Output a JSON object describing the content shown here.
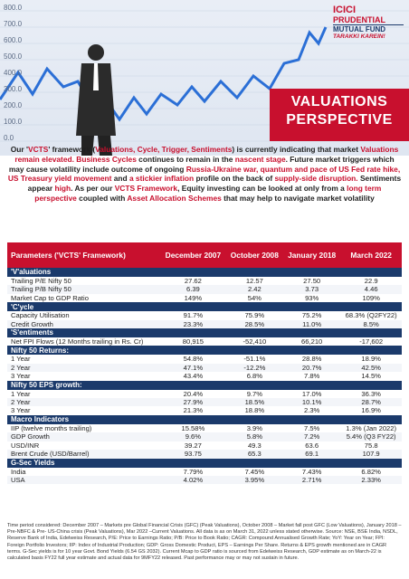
{
  "hero": {
    "y_ticks": [
      "800.0",
      "700.0",
      "600.0",
      "500.0",
      "400.0",
      "300.0",
      "200.0",
      "100.0",
      "0.0"
    ],
    "logo": {
      "brand": "ICICI",
      "sub": "PRUDENTIAL",
      "fund": "MUTUAL FUND",
      "tagline": "TARAKKI KAREIN!"
    },
    "title_line1": "VALUATIONS",
    "title_line2": "PERSPECTIVE"
  },
  "intro": {
    "p1_a": "Our '",
    "vcts": "VCTS",
    "p1_b": "' framework (",
    "vcts_expansion": "Valuations, Cycle, Trigger, Sentiments",
    "p1_c": ") is currently indicating that market ",
    "val_elev": "Valuations remain elevated.",
    "p1_d": " ",
    "bus_cyc": "Business Cycles",
    "p1_e": " continues to remain in the ",
    "nascent": "nascent stage",
    "p1_f": ". Future market triggers which may cause volatility include outcome of ongoing ",
    "ru_war": "Russia-Ukraine war, quantum and pace of US Fed rate hike, US Treasury yield movement",
    "p1_g": " and ",
    "infl": "a stickier inflation",
    "p1_h": " profile on the back of ",
    "supply": "supply-side disruption.",
    "p1_i": " Sentiments appear ",
    "high": "high",
    "p1_j": ". As per our ",
    "vcts_fw": "VCTS Framework",
    "p1_k": ", Equity investing can be looked at only from a ",
    "ltp": "long term perspective",
    "p1_l": " coupled with ",
    "aas": "Asset Allocation Schemes",
    "p1_m": " that may help to navigate market volatility"
  },
  "table": {
    "headers": {
      "param": "Parameters ('VCTS' Framework)",
      "c1": "December 2007",
      "c2": "October 2008",
      "c3": "January 2018",
      "c4": "March 2022"
    },
    "sections": [
      {
        "title": "'V'aluations",
        "rows": [
          [
            "Trailing P/E Nifty 50",
            "27.62",
            "12.57",
            "27.50",
            "22.9"
          ],
          [
            "Trailing P/B Nifty 50",
            "6.39",
            "2.42",
            "3.73",
            "4.46"
          ],
          [
            "Market Cap to GDP Ratio",
            "149%",
            "54%",
            "93%",
            "109%"
          ]
        ]
      },
      {
        "title": "'C'ycle",
        "rows": [
          [
            "Capacity Utilisation",
            "91.7%",
            "75.9%",
            "75.2%",
            "68.3% (Q2FY22)"
          ],
          [
            "Credit Growth",
            "23.3%",
            "28.5%",
            "11.0%",
            "8.5%"
          ]
        ]
      },
      {
        "title": "'S'entiments",
        "rows": [
          [
            "Net FPI Flows (12 Months trailing in Rs. Cr)",
            "80,915",
            "-52,410",
            "66,210",
            "-17,602"
          ]
        ]
      },
      {
        "title": "Nifty 50 Returns:",
        "rows": [
          [
            "1 Year",
            "54.8%",
            "-51.1%",
            "28.8%",
            "18.9%"
          ],
          [
            "2 Year",
            "47.1%",
            "-12.2%",
            "20.7%",
            "42.5%"
          ],
          [
            "3 Year",
            "43.4%",
            "6.8%",
            "7.8%",
            "14.5%"
          ]
        ]
      },
      {
        "title": "Nifty 50 EPS growth:",
        "rows": [
          [
            "1 Year",
            "20.4%",
            "9.7%",
            "17.0%",
            "36.3%"
          ],
          [
            "2 Year",
            "27.9%",
            "18.5%",
            "10.1%",
            "28.7%"
          ],
          [
            "3 Year",
            "21.3%",
            "18.8%",
            "2.3%",
            "16.9%"
          ]
        ]
      },
      {
        "title": "Macro Indicators",
        "rows": [
          [
            "IIP (twelve months trailing)",
            "15.58%",
            "3.9%",
            "7.5%",
            "1.3% (Jan 2022)"
          ],
          [
            "GDP Growth",
            "9.6%",
            "5.8%",
            "7.2%",
            "5.4% (Q3 FY22)"
          ],
          [
            "USD/INR",
            "39.27",
            "49.3",
            "63.6",
            "75.8"
          ],
          [
            "Brent Crude (USD/Barrel)",
            "93.75",
            "65.3",
            "69.1",
            "107.9"
          ]
        ]
      },
      {
        "title": "G-Sec Yields",
        "rows": [
          [
            "India",
            "7.79%",
            "7.45%",
            "7.43%",
            "6.82%"
          ],
          [
            "USA",
            "4.02%",
            "3.95%",
            "2.71%",
            "2.33%"
          ]
        ]
      }
    ]
  },
  "footnote": "Time period considered: December 2007 – Markets pre Global Financial Crisis (GFC) (Peak Valuations), October 2008 – Market fall post GFC (Low Valuations), January 2018 – Pre-NBFC & Pre- US-China crisis (Peak Valuations), Mar 2022 –Current Valuations. All data is as on March 31, 2022 unless stated otherwise. Source: NSE, BSE India, NSDL, Reserve Bank of India, Edelweiss Research, P/E: Price to Earnings Ratio; P/B: Price to Book Ratio; CAGR: Compound Annualised Growth Rate; YoY: Year on Year; FPI: Foreign Portfolio Investors; IIP: Index of Industrial Production; GDP: Gross Domestic Product, EPS – Earnings Per Share. Returns & EPS growth mentioned are in CAGR terms. G-Sec yields is for 10 year Govt. Bond Yields (6.54 GS 2032). Current Mcap to GDP ratio is sourced from Edelweiss Research, GDP estimate as on March-22 is calculated basis FY22 full year estimate and actual data for 9MFY22 released. Past performance may or may not sustain in future.",
  "colors": {
    "red": "#c8102e",
    "navy": "#1b3a6b"
  }
}
